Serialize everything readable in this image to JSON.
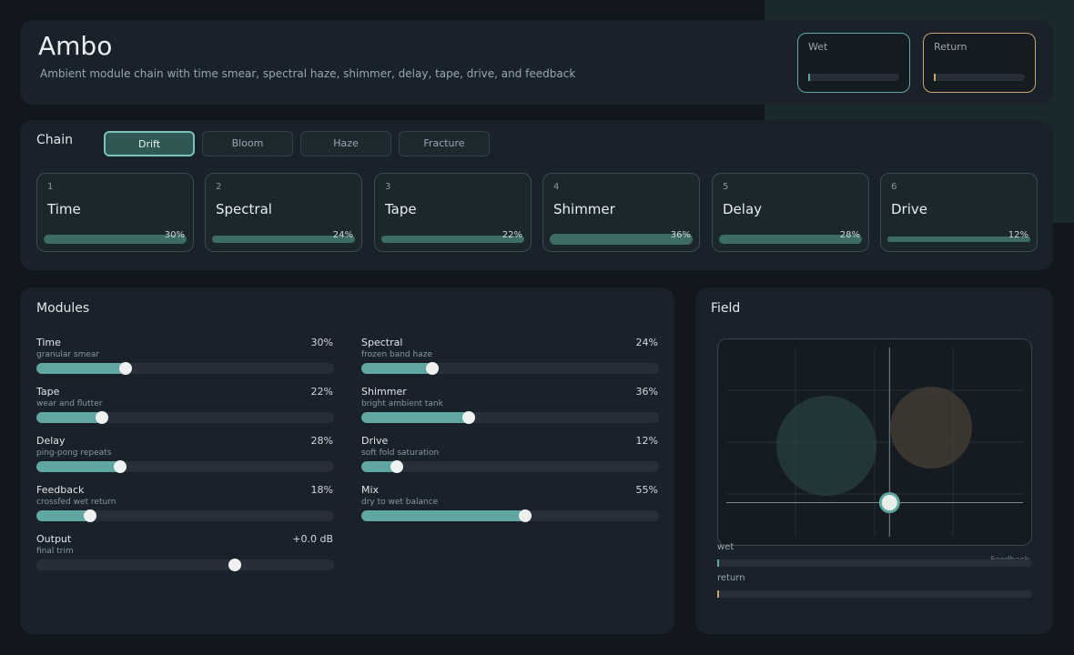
{
  "header": {
    "title": "Ambo",
    "subtitle": "Ambient module chain with time smear, spectral haze, shimmer, delay, tape, drive, and feedback"
  },
  "meters": [
    {
      "label": "Wet",
      "level": 0,
      "color": "#5fa7a0"
    },
    {
      "label": "Return",
      "level": 0,
      "color": "#c9a36a"
    }
  ],
  "chain": {
    "label": "Chain",
    "presets": [
      "Drift",
      "Bloom",
      "Haze",
      "Fracture"
    ],
    "selected_preset": "Drift",
    "cards": [
      {
        "index": "1",
        "name": "Time",
        "value": 30,
        "label": "30%"
      },
      {
        "index": "2",
        "name": "Spectral",
        "value": 24,
        "label": "24%"
      },
      {
        "index": "3",
        "name": "Tape",
        "value": 22,
        "label": "22%"
      },
      {
        "index": "4",
        "name": "Shimmer",
        "value": 36,
        "label": "36%"
      },
      {
        "index": "5",
        "name": "Delay",
        "value": 28,
        "label": "28%"
      },
      {
        "index": "6",
        "name": "Drive",
        "value": 12,
        "label": "12%"
      }
    ]
  },
  "modules": {
    "title": "Modules",
    "sliders": [
      {
        "name": "Time",
        "desc": "granular smear",
        "value": 30,
        "label": "30%",
        "range": [
          0,
          100
        ]
      },
      {
        "name": "Spectral",
        "desc": "frozen band haze",
        "value": 24,
        "label": "24%",
        "range": [
          0,
          100
        ]
      },
      {
        "name": "Tape",
        "desc": "wear and flutter",
        "value": 22,
        "label": "22%",
        "range": [
          0,
          100
        ]
      },
      {
        "name": "Shimmer",
        "desc": "bright ambient tank",
        "value": 36,
        "label": "36%",
        "range": [
          0,
          100
        ]
      },
      {
        "name": "Delay",
        "desc": "ping-pong repeats",
        "value": 28,
        "label": "28%",
        "range": [
          0,
          100
        ]
      },
      {
        "name": "Drive",
        "desc": "soft fold saturation",
        "value": 12,
        "label": "12%",
        "range": [
          0,
          100
        ]
      },
      {
        "name": "Feedback",
        "desc": "crossfed wet return",
        "value": 18,
        "label": "18%",
        "range": [
          0,
          100
        ]
      },
      {
        "name": "Mix",
        "desc": "dry to wet balance",
        "value": 55,
        "label": "55%",
        "range": [
          0,
          100
        ]
      },
      {
        "name": "Output",
        "desc": "final trim",
        "value": 0,
        "label": "+0.0 dB",
        "range": [
          -24,
          12
        ]
      }
    ]
  },
  "field": {
    "title": "Field",
    "wet_label": "wet",
    "return_label": "return",
    "hint": "Feedback"
  }
}
